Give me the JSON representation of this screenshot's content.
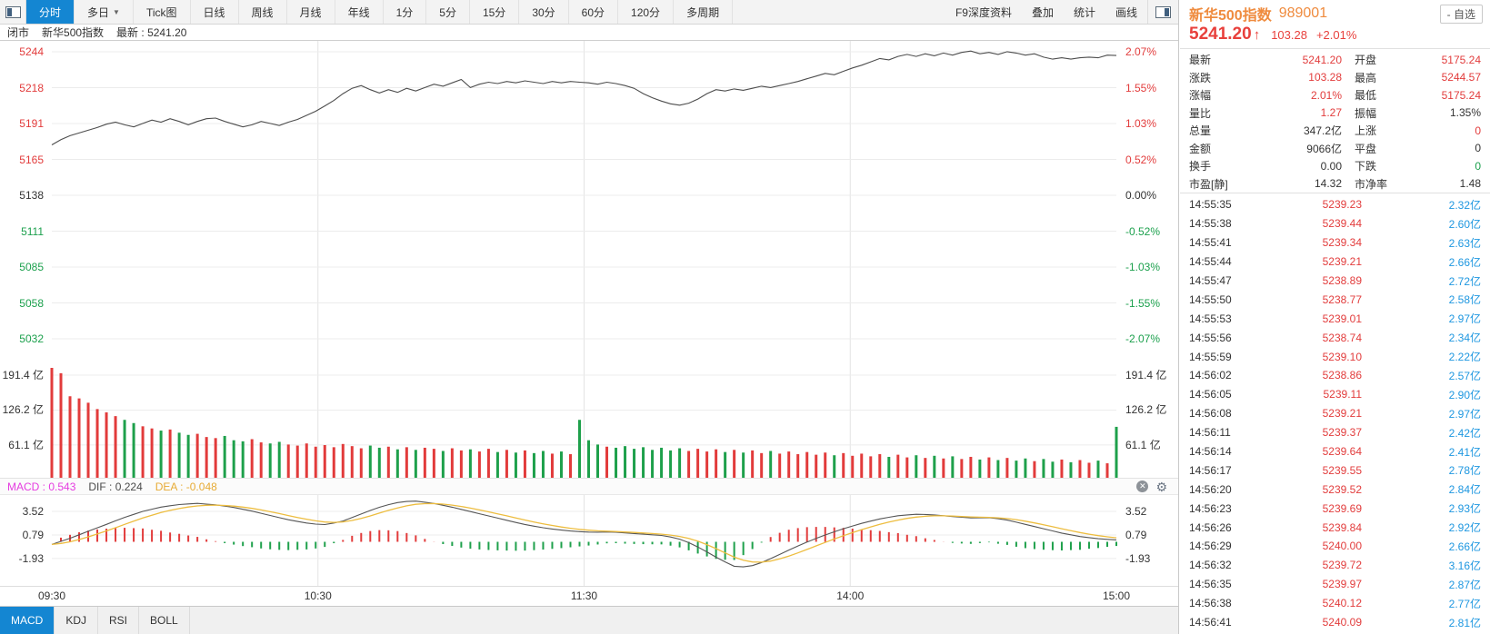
{
  "toolbar": {
    "tabs": [
      {
        "label": "分时",
        "active": true
      },
      {
        "label": "多日",
        "caret": "▼"
      },
      {
        "label": "Tick图"
      },
      {
        "label": "日线"
      },
      {
        "label": "周线"
      },
      {
        "label": "月线"
      },
      {
        "label": "年线"
      },
      {
        "label": "1分"
      },
      {
        "label": "5分"
      },
      {
        "label": "15分"
      },
      {
        "label": "30分"
      },
      {
        "label": "60分"
      },
      {
        "label": "120分"
      },
      {
        "label": "多周期"
      }
    ],
    "tools": [
      "F9深度资料",
      "叠加",
      "统计",
      "画线"
    ]
  },
  "status_bar": {
    "market_status": "闭市",
    "name": "新华500指数",
    "latest_label": "最新 :",
    "latest_value": "5241.20"
  },
  "indicator_header": {
    "items": [
      {
        "label": "MACD : 0.543",
        "color": "#e53ce0"
      },
      {
        "label": "DIF : 0.224",
        "color": "#4a4a4a"
      },
      {
        "label": "DEA : -0.048",
        "color": "#e7ab35"
      }
    ]
  },
  "bottom_tabs": [
    {
      "label": "MACD",
      "active": true
    },
    {
      "label": "KDJ"
    },
    {
      "label": "RSI"
    },
    {
      "label": "BOLL"
    }
  ],
  "chart_data": {
    "type": "line",
    "title": "新华500指数 分时走势",
    "prev_close": 5137.92,
    "ylim": [
      5020.6,
      5252
    ],
    "x_ticks": [
      "09:30",
      "10:30",
      "11:30",
      "14:00",
      "15:00"
    ],
    "x_tick_pos": [
      0,
      0.25,
      0.5,
      0.75,
      1
    ],
    "axis_left": [
      {
        "label": "5244",
        "cls": "c-up"
      },
      {
        "label": "5218",
        "cls": "c-up"
      },
      {
        "label": "5191",
        "cls": "c-up"
      },
      {
        "label": "5165",
        "cls": "c-up"
      },
      {
        "label": "5138",
        "cls": "c-flat"
      },
      {
        "label": "5111",
        "cls": "c-down"
      },
      {
        "label": "5085",
        "cls": "c-down"
      },
      {
        "label": "5058",
        "cls": "c-down"
      },
      {
        "label": "5032",
        "cls": "c-down"
      }
    ],
    "axis_right": [
      {
        "label": "2.07%",
        "cls": "c-up"
      },
      {
        "label": "1.55%",
        "cls": "c-up"
      },
      {
        "label": "1.03%",
        "cls": "c-up"
      },
      {
        "label": "0.52%",
        "cls": "c-up"
      },
      {
        "label": "0.00%",
        "cls": "c-flat"
      },
      {
        "label": "-0.52%",
        "cls": "c-down"
      },
      {
        "label": "-1.03%",
        "cls": "c-down"
      },
      {
        "label": "-1.55%",
        "cls": "c-down"
      },
      {
        "label": "-2.07%",
        "cls": "c-down"
      }
    ],
    "price": [
      5175.2,
      5179,
      5182,
      5184,
      5186,
      5188,
      5190.5,
      5192,
      5190,
      5188.5,
      5191,
      5193.5,
      5192,
      5194.5,
      5192.5,
      5190,
      5192.5,
      5194.5,
      5195,
      5192.5,
      5190.5,
      5188.5,
      5190,
      5192.5,
      5191,
      5189.5,
      5192,
      5194,
      5197,
      5200,
      5204,
      5208,
      5213,
      5217,
      5219,
      5216,
      5213.5,
      5216,
      5214,
      5217,
      5215,
      5217.5,
      5220,
      5218.5,
      5221,
      5223.5,
      5217.5,
      5220,
      5221.5,
      5220.5,
      5222,
      5221,
      5222.5,
      5221.5,
      5220.5,
      5222,
      5221,
      5222,
      5221.5,
      5221,
      5220,
      5221.5,
      5220.5,
      5219,
      5217,
      5213,
      5210,
      5207.5,
      5205.5,
      5204.5,
      5206,
      5209,
      5213,
      5216,
      5215,
      5216.5,
      5215.5,
      5217,
      5218.5,
      5217.5,
      5219,
      5220.5,
      5222,
      5224,
      5226,
      5228,
      5227,
      5229.5,
      5232,
      5234,
      5236.5,
      5239,
      5238,
      5240.5,
      5242,
      5240.5,
      5242.5,
      5241,
      5243,
      5241.5,
      5243.5,
      5244.5,
      5242.5,
      5243.5,
      5242,
      5244,
      5243,
      5241.5,
      5242.5,
      5240,
      5238.5,
      5239.5,
      5238.5,
      5239.5,
      5240,
      5239.5,
      5241.5,
      5241.2
    ],
    "volume": {
      "unit": "亿",
      "axis_labels": [
        "191.4 亿",
        "126.2 亿",
        "61.1 亿"
      ],
      "axis_values": [
        191.4,
        126.2,
        61.1
      ],
      "values": [
        205,
        195,
        152,
        148,
        140,
        128,
        122,
        115,
        108,
        102,
        96,
        92,
        88,
        90,
        84,
        80,
        82,
        76,
        74,
        78,
        70,
        68,
        72,
        66,
        64,
        67,
        62,
        60,
        64,
        58,
        61,
        57,
        63,
        59,
        55,
        60,
        56,
        58,
        53,
        57,
        52,
        56,
        54,
        50,
        55,
        51,
        53,
        49,
        54,
        48,
        52,
        47,
        51,
        46,
        50,
        45,
        49,
        44,
        108,
        70,
        62,
        58,
        56,
        59,
        54,
        57,
        52,
        56,
        51,
        55,
        50,
        54,
        49,
        53,
        48,
        52,
        47,
        51,
        46,
        50,
        45,
        49,
        44,
        48,
        43,
        47,
        42,
        46,
        41,
        45,
        40,
        44,
        39,
        43,
        38,
        42,
        37,
        41,
        36,
        40,
        35,
        39,
        34,
        38,
        33,
        37,
        32,
        36,
        31,
        35,
        30,
        34,
        29,
        33,
        28,
        32,
        27,
        95
      ]
    },
    "macd": {
      "axis_labels": [
        "3.52",
        "0.79",
        "-1.93"
      ],
      "axis_values": [
        3.52,
        0.79,
        -1.93
      ],
      "macd_last": 0.543,
      "dif_last": 0.224,
      "dea_last": -0.048,
      "dif": [
        -0.3,
        0.4,
        1.2,
        2.0,
        2.8,
        3.5,
        4.0,
        4.3,
        4.45,
        4.3,
        4.0,
        3.6,
        3.1,
        2.6,
        2.2,
        1.95,
        2.3,
        3.1,
        3.9,
        4.5,
        4.75,
        4.5,
        4.1,
        3.6,
        3.1,
        2.6,
        2.1,
        1.7,
        1.4,
        1.2,
        1.1,
        1.15,
        1.0,
        0.85,
        0.7,
        0.2,
        -0.8,
        -2.0,
        -3.0,
        -2.7,
        -1.8,
        -0.8,
        0.1,
        0.9,
        1.6,
        2.2,
        2.7,
        3.05,
        3.2,
        3.1,
        2.9,
        2.75,
        2.8,
        2.5,
        2.0,
        1.5,
        1.0,
        0.6,
        0.35,
        0.22
      ]
    },
    "colors": {
      "up": "#e23b3b",
      "down": "#1ea04b",
      "price_line": "#4d4d4d",
      "dea_line": "#edbd3f",
      "grid": "#ececec",
      "vgrid": "#e4e4e4"
    }
  },
  "quote_panel": {
    "name": "新华500指数",
    "code": "989001",
    "watchlist_button": "- 自选",
    "price": "5241.20",
    "arrow": "↑",
    "change": "103.28",
    "change_pct": "+2.01%",
    "stats": [
      [
        {
          "label": "最新",
          "value": "5241.20",
          "cls": "c-up"
        },
        {
          "label": "开盘",
          "value": "5175.24",
          "cls": "c-up"
        }
      ],
      [
        {
          "label": "涨跌",
          "value": "103.28",
          "cls": "c-up"
        },
        {
          "label": "最高",
          "value": "5244.57",
          "cls": "c-up"
        }
      ],
      [
        {
          "label": "涨幅",
          "value": "2.01%",
          "cls": "c-up"
        },
        {
          "label": "最低",
          "value": "5175.24",
          "cls": "c-up"
        }
      ],
      [
        {
          "label": "量比",
          "value": "1.27",
          "cls": "c-up"
        },
        {
          "label": "振幅",
          "value": "1.35%",
          "cls": "c-flat"
        }
      ],
      [
        {
          "label": "总量",
          "value": "347.2亿",
          "cls": "c-flat"
        },
        {
          "label": "上涨",
          "value": "0",
          "cls": "c-up"
        }
      ],
      [
        {
          "label": "金额",
          "value": "9066亿",
          "cls": "c-flat"
        },
        {
          "label": "平盘",
          "value": "0",
          "cls": "c-flat"
        }
      ],
      [
        {
          "label": "换手",
          "value": "0.00",
          "cls": "c-flat"
        },
        {
          "label": "下跌",
          "value": "0",
          "cls": "c-down"
        }
      ],
      [
        {
          "label": "市盈[静]",
          "value": "14.32",
          "cls": "c-flat"
        },
        {
          "label": "市净率",
          "value": "1.48",
          "cls": "c-flat"
        }
      ]
    ],
    "tape": [
      [
        "14:55:35",
        "5239.23",
        "2.32亿"
      ],
      [
        "14:55:38",
        "5239.44",
        "2.60亿"
      ],
      [
        "14:55:41",
        "5239.34",
        "2.63亿"
      ],
      [
        "14:55:44",
        "5239.21",
        "2.66亿"
      ],
      [
        "14:55:47",
        "5238.89",
        "2.72亿"
      ],
      [
        "14:55:50",
        "5238.77",
        "2.58亿"
      ],
      [
        "14:55:53",
        "5239.01",
        "2.97亿"
      ],
      [
        "14:55:56",
        "5238.74",
        "2.34亿"
      ],
      [
        "14:55:59",
        "5239.10",
        "2.22亿"
      ],
      [
        "14:56:02",
        "5238.86",
        "2.57亿"
      ],
      [
        "14:56:05",
        "5239.11",
        "2.90亿"
      ],
      [
        "14:56:08",
        "5239.21",
        "2.97亿"
      ],
      [
        "14:56:11",
        "5239.37",
        "2.42亿"
      ],
      [
        "14:56:14",
        "5239.64",
        "2.41亿"
      ],
      [
        "14:56:17",
        "5239.55",
        "2.78亿"
      ],
      [
        "14:56:20",
        "5239.52",
        "2.84亿"
      ],
      [
        "14:56:23",
        "5239.69",
        "2.93亿"
      ],
      [
        "14:56:26",
        "5239.84",
        "2.92亿"
      ],
      [
        "14:56:29",
        "5240.00",
        "2.66亿"
      ],
      [
        "14:56:32",
        "5239.72",
        "3.16亿"
      ],
      [
        "14:56:35",
        "5239.97",
        "2.87亿"
      ],
      [
        "14:56:38",
        "5240.12",
        "2.77亿"
      ],
      [
        "14:56:41",
        "5240.09",
        "2.81亿"
      ]
    ]
  }
}
